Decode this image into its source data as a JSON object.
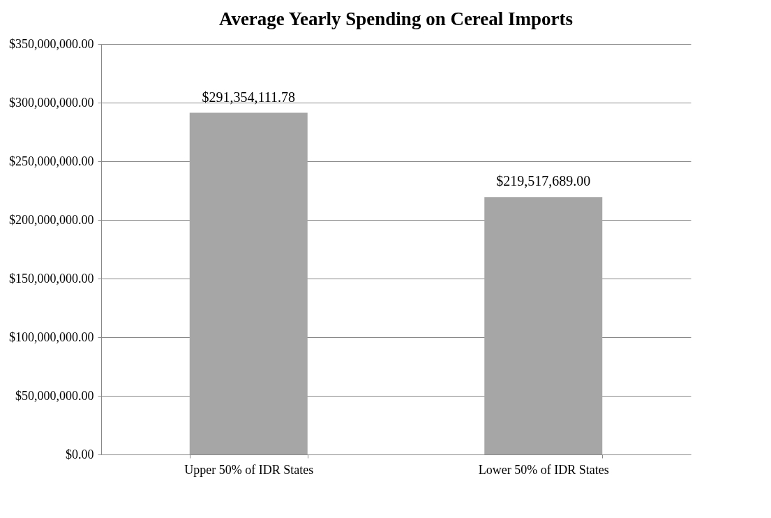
{
  "chart_data": {
    "type": "bar",
    "title": "Average Yearly Spending on Cereal Imports",
    "categories": [
      "Upper 50% of IDR States",
      "Lower 50% of IDR States"
    ],
    "values": [
      291354111.78,
      219517689.0
    ],
    "value_labels": [
      "$291,354,111.78",
      "$219,517,689.00"
    ],
    "color": "#a6a6a6",
    "ylim": [
      0,
      350000000
    ],
    "yticks": [
      {
        "value": 0,
        "label": "$0.00"
      },
      {
        "value": 50000000,
        "label": "$50,000,000.00"
      },
      {
        "value": 100000000,
        "label": "$100,000,000.00"
      },
      {
        "value": 150000000,
        "label": "$150,000,000.00"
      },
      {
        "value": 200000000,
        "label": "$200,000,000.00"
      },
      {
        "value": 250000000,
        "label": "$250,000,000.00"
      },
      {
        "value": 300000000,
        "label": "$300,000,000.00"
      },
      {
        "value": 350000000,
        "label": "$350,000,000.00"
      }
    ],
    "grid": "y"
  }
}
